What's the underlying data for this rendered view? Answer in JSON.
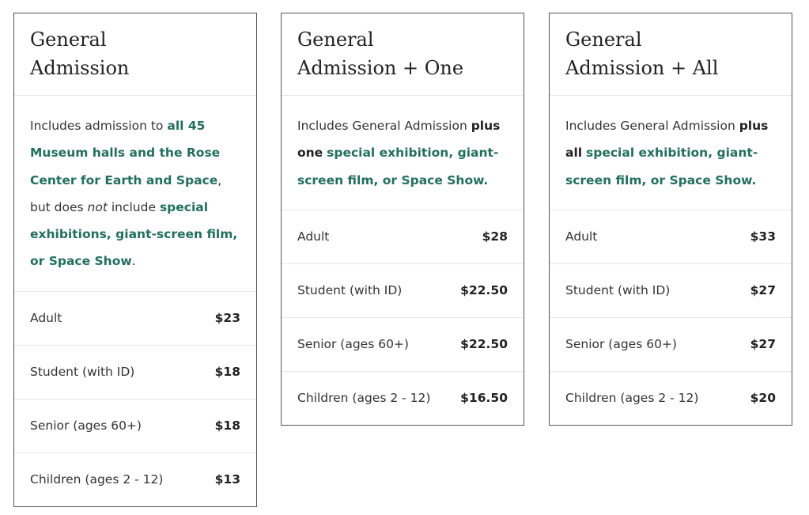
{
  "cards": [
    {
      "title_lines": [
        "General",
        "Admission"
      ],
      "description": [
        {
          "text": "Includes admission to ",
          "style": "plain"
        },
        {
          "text": "all 45 Museum halls and the Rose Center for Earth and Space",
          "style": "link"
        },
        {
          "text": ", but does ",
          "style": "plain"
        },
        {
          "text": "not",
          "style": "italic"
        },
        {
          "text": " include ",
          "style": "plain"
        },
        {
          "text": "special exhibitions, giant-screen film, or Space Show",
          "style": "link"
        },
        {
          "text": ".",
          "style": "plain"
        }
      ],
      "prices": [
        {
          "label": "Adult",
          "price": "$23"
        },
        {
          "label": "Student (with ID)",
          "price": "$18"
        },
        {
          "label": "Senior (ages 60+)",
          "price": "$18"
        },
        {
          "label": "Children (ages 2 - 12)",
          "price": "$13"
        }
      ]
    },
    {
      "title_lines": [
        "General",
        "Admission + One"
      ],
      "description": [
        {
          "text": "Includes General Admission ",
          "style": "plain"
        },
        {
          "text": "plus one",
          "style": "bold"
        },
        {
          "text": " ",
          "style": "plain"
        },
        {
          "text": "special exhibition, giant-screen film, or Space Show.",
          "style": "link"
        }
      ],
      "prices": [
        {
          "label": "Adult",
          "price": "$28"
        },
        {
          "label": "Student (with ID)",
          "price": "$22.50"
        },
        {
          "label": "Senior (ages 60+)",
          "price": "$22.50"
        },
        {
          "label": "Children (ages 2 - 12)",
          "price": "$16.50"
        }
      ]
    },
    {
      "title_lines": [
        "General",
        "Admission + All"
      ],
      "description": [
        {
          "text": "Includes General Admission ",
          "style": "plain"
        },
        {
          "text": "plus all",
          "style": "bold"
        },
        {
          "text": " ",
          "style": "plain"
        },
        {
          "text": "special exhibition, giant-screen film, or Space Show.",
          "style": "link"
        }
      ],
      "prices": [
        {
          "label": "Adult",
          "price": "$33"
        },
        {
          "label": "Student (with ID)",
          "price": "$27"
        },
        {
          "label": "Senior (ages 60+)",
          "price": "$27"
        },
        {
          "label": "Children (ages 2 - 12)",
          "price": "$20"
        }
      ]
    }
  ]
}
